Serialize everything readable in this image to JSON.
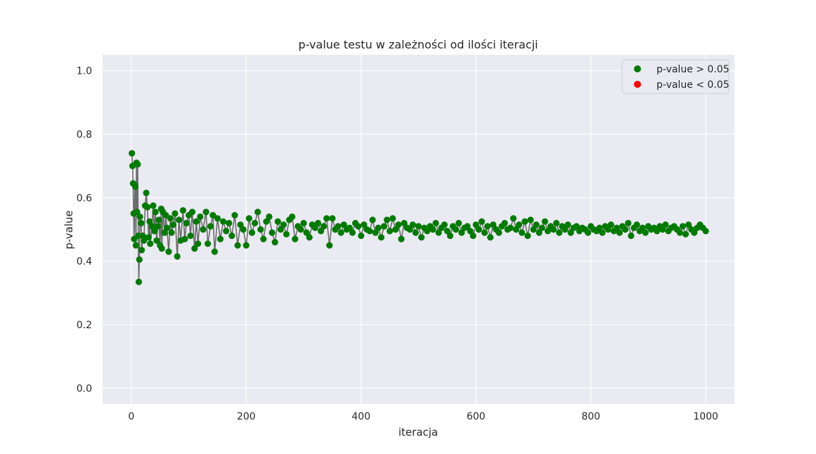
{
  "chart_data": {
    "type": "scatter",
    "title": "p-value testu w zależności od ilości iteracji",
    "xlabel": "iteracja",
    "ylabel": "p-value",
    "xlim": [
      -50,
      1050
    ],
    "ylim": [
      -0.05,
      1.05
    ],
    "xticks": [
      0,
      200,
      400,
      600,
      800,
      1000
    ],
    "yticks": [
      0.0,
      0.2,
      0.4,
      0.6,
      0.8,
      1.0
    ],
    "xtick_labels": [
      "0",
      "200",
      "400",
      "600",
      "800",
      "1000"
    ],
    "ytick_labels": [
      "0.0",
      "0.2",
      "0.4",
      "0.6",
      "0.8",
      "1.0"
    ],
    "grid": true,
    "legend_position": "top-right",
    "colors": {
      "background": "#eaeaf2",
      "grid": "#ffffff",
      "line": "#555555",
      "above": "#007a00",
      "below": "#ff0000"
    },
    "series": [
      {
        "name": "p-value > 0.05",
        "color": "#007a00",
        "points": [
          [
            1,
            0.74
          ],
          [
            2,
            0.7
          ],
          [
            3,
            0.645
          ],
          [
            4,
            0.55
          ],
          [
            5,
            0.47
          ],
          [
            6,
            0.64
          ],
          [
            7,
            0.635
          ],
          [
            8,
            0.45
          ],
          [
            9,
            0.71
          ],
          [
            10,
            0.555
          ],
          [
            11,
            0.705
          ],
          [
            12,
            0.48
          ],
          [
            13,
            0.335
          ],
          [
            14,
            0.405
          ],
          [
            15,
            0.54
          ],
          [
            17,
            0.52
          ],
          [
            18,
            0.435
          ],
          [
            20,
            0.48
          ],
          [
            22,
            0.465
          ],
          [
            24,
            0.575
          ],
          [
            26,
            0.615
          ],
          [
            28,
            0.57
          ],
          [
            30,
            0.475
          ],
          [
            32,
            0.525
          ],
          [
            33,
            0.455
          ],
          [
            36,
            0.51
          ],
          [
            38,
            0.575
          ],
          [
            40,
            0.495
          ],
          [
            42,
            0.555
          ],
          [
            44,
            0.465
          ],
          [
            46,
            0.51
          ],
          [
            48,
            0.53
          ],
          [
            50,
            0.45
          ],
          [
            52,
            0.565
          ],
          [
            53,
            0.44
          ],
          [
            55,
            0.555
          ],
          [
            58,
            0.49
          ],
          [
            60,
            0.545
          ],
          [
            62,
            0.505
          ],
          [
            65,
            0.43
          ],
          [
            68,
            0.535
          ],
          [
            70,
            0.49
          ],
          [
            73,
            0.515
          ],
          [
            76,
            0.55
          ],
          [
            80,
            0.415
          ],
          [
            83,
            0.53
          ],
          [
            86,
            0.465
          ],
          [
            90,
            0.56
          ],
          [
            93,
            0.47
          ],
          [
            96,
            0.52
          ],
          [
            100,
            0.545
          ],
          [
            103,
            0.48
          ],
          [
            106,
            0.555
          ],
          [
            110,
            0.44
          ],
          [
            113,
            0.525
          ],
          [
            116,
            0.455
          ],
          [
            120,
            0.54
          ],
          [
            125,
            0.5
          ],
          [
            130,
            0.555
          ],
          [
            133,
            0.455
          ],
          [
            138,
            0.51
          ],
          [
            142,
            0.545
          ],
          [
            145,
            0.43
          ],
          [
            150,
            0.535
          ],
          [
            155,
            0.47
          ],
          [
            160,
            0.525
          ],
          [
            165,
            0.495
          ],
          [
            170,
            0.52
          ],
          [
            175,
            0.48
          ],
          [
            180,
            0.545
          ],
          [
            185,
            0.45
          ],
          [
            190,
            0.515
          ],
          [
            195,
            0.5
          ],
          [
            200,
            0.45
          ],
          [
            205,
            0.535
          ],
          [
            210,
            0.49
          ],
          [
            215,
            0.52
          ],
          [
            220,
            0.555
          ],
          [
            225,
            0.5
          ],
          [
            230,
            0.47
          ],
          [
            235,
            0.525
          ],
          [
            240,
            0.54
          ],
          [
            245,
            0.49
          ],
          [
            250,
            0.46
          ],
          [
            255,
            0.525
          ],
          [
            260,
            0.5
          ],
          [
            265,
            0.515
          ],
          [
            270,
            0.485
          ],
          [
            275,
            0.53
          ],
          [
            280,
            0.54
          ],
          [
            285,
            0.47
          ],
          [
            290,
            0.51
          ],
          [
            295,
            0.5
          ],
          [
            300,
            0.52
          ],
          [
            305,
            0.49
          ],
          [
            310,
            0.475
          ],
          [
            315,
            0.515
          ],
          [
            320,
            0.505
          ],
          [
            325,
            0.52
          ],
          [
            330,
            0.495
          ],
          [
            335,
            0.51
          ],
          [
            340,
            0.535
          ],
          [
            345,
            0.45
          ],
          [
            350,
            0.535
          ],
          [
            355,
            0.5
          ],
          [
            360,
            0.51
          ],
          [
            365,
            0.49
          ],
          [
            370,
            0.515
          ],
          [
            375,
            0.5
          ],
          [
            380,
            0.505
          ],
          [
            385,
            0.49
          ],
          [
            390,
            0.52
          ],
          [
            395,
            0.51
          ],
          [
            400,
            0.48
          ],
          [
            405,
            0.515
          ],
          [
            410,
            0.5
          ],
          [
            415,
            0.495
          ],
          [
            420,
            0.53
          ],
          [
            425,
            0.49
          ],
          [
            430,
            0.505
          ],
          [
            435,
            0.475
          ],
          [
            440,
            0.51
          ],
          [
            445,
            0.53
          ],
          [
            450,
            0.495
          ],
          [
            455,
            0.535
          ],
          [
            460,
            0.5
          ],
          [
            465,
            0.515
          ],
          [
            470,
            0.47
          ],
          [
            475,
            0.52
          ],
          [
            480,
            0.505
          ],
          [
            485,
            0.5
          ],
          [
            490,
            0.515
          ],
          [
            495,
            0.49
          ],
          [
            500,
            0.51
          ],
          [
            505,
            0.475
          ],
          [
            510,
            0.505
          ],
          [
            515,
            0.495
          ],
          [
            520,
            0.51
          ],
          [
            525,
            0.5
          ],
          [
            530,
            0.52
          ],
          [
            535,
            0.49
          ],
          [
            540,
            0.505
          ],
          [
            545,
            0.515
          ],
          [
            550,
            0.495
          ],
          [
            555,
            0.48
          ],
          [
            560,
            0.51
          ],
          [
            565,
            0.5
          ],
          [
            570,
            0.52
          ],
          [
            575,
            0.49
          ],
          [
            580,
            0.505
          ],
          [
            585,
            0.51
          ],
          [
            590,
            0.495
          ],
          [
            595,
            0.48
          ],
          [
            600,
            0.515
          ],
          [
            605,
            0.5
          ],
          [
            610,
            0.525
          ],
          [
            615,
            0.49
          ],
          [
            620,
            0.51
          ],
          [
            625,
            0.475
          ],
          [
            630,
            0.515
          ],
          [
            635,
            0.5
          ],
          [
            640,
            0.49
          ],
          [
            645,
            0.51
          ],
          [
            650,
            0.52
          ],
          [
            655,
            0.5
          ],
          [
            660,
            0.505
          ],
          [
            665,
            0.535
          ],
          [
            670,
            0.5
          ],
          [
            675,
            0.515
          ],
          [
            680,
            0.49
          ],
          [
            685,
            0.525
          ],
          [
            690,
            0.48
          ],
          [
            695,
            0.53
          ],
          [
            700,
            0.5
          ],
          [
            705,
            0.515
          ],
          [
            710,
            0.49
          ],
          [
            715,
            0.505
          ],
          [
            720,
            0.525
          ],
          [
            725,
            0.495
          ],
          [
            730,
            0.51
          ],
          [
            735,
            0.5
          ],
          [
            740,
            0.52
          ],
          [
            745,
            0.49
          ],
          [
            750,
            0.51
          ],
          [
            755,
            0.5
          ],
          [
            760,
            0.515
          ],
          [
            765,
            0.49
          ],
          [
            770,
            0.505
          ],
          [
            775,
            0.51
          ],
          [
            780,
            0.495
          ],
          [
            785,
            0.505
          ],
          [
            790,
            0.5
          ],
          [
            795,
            0.49
          ],
          [
            800,
            0.51
          ],
          [
            805,
            0.5
          ],
          [
            810,
            0.495
          ],
          [
            815,
            0.505
          ],
          [
            820,
            0.49
          ],
          [
            825,
            0.51
          ],
          [
            830,
            0.5
          ],
          [
            835,
            0.515
          ],
          [
            840,
            0.495
          ],
          [
            845,
            0.505
          ],
          [
            850,
            0.49
          ],
          [
            855,
            0.51
          ],
          [
            860,
            0.5
          ],
          [
            865,
            0.52
          ],
          [
            870,
            0.48
          ],
          [
            875,
            0.505
          ],
          [
            880,
            0.515
          ],
          [
            885,
            0.495
          ],
          [
            890,
            0.505
          ],
          [
            895,
            0.49
          ],
          [
            900,
            0.51
          ],
          [
            905,
            0.5
          ],
          [
            910,
            0.505
          ],
          [
            915,
            0.495
          ],
          [
            920,
            0.51
          ],
          [
            925,
            0.5
          ],
          [
            930,
            0.515
          ],
          [
            935,
            0.495
          ],
          [
            940,
            0.505
          ],
          [
            945,
            0.51
          ],
          [
            950,
            0.5
          ],
          [
            955,
            0.49
          ],
          [
            960,
            0.51
          ],
          [
            965,
            0.485
          ],
          [
            970,
            0.515
          ],
          [
            975,
            0.5
          ],
          [
            980,
            0.49
          ],
          [
            985,
            0.505
          ],
          [
            990,
            0.515
          ],
          [
            995,
            0.505
          ],
          [
            1000,
            0.495
          ]
        ]
      },
      {
        "name": "p-value < 0.05",
        "color": "#ff0000",
        "points": []
      }
    ]
  }
}
